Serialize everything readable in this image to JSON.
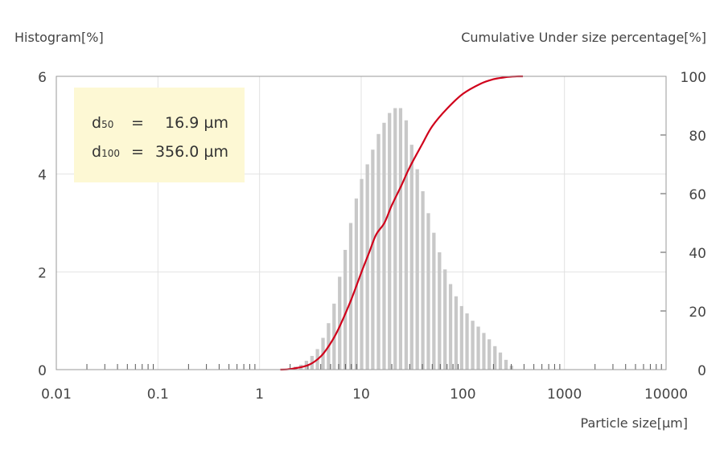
{
  "chart_data": {
    "type": "bar",
    "title": "",
    "y_left_label": "Histogram[%]",
    "y_right_label": "Cumulative Under size percentage[%]",
    "xlabel": "Particle size[µm]",
    "x_scale": "log",
    "xlim": [
      0.01,
      10000
    ],
    "x_ticks": [
      "0.01",
      "0.1",
      "1",
      "10",
      "100",
      "1000",
      "10000"
    ],
    "ylim_left": [
      0,
      6
    ],
    "y_left_ticks": [
      "0",
      "2",
      "4",
      "6"
    ],
    "ylim_right": [
      0,
      100
    ],
    "y_right_ticks": [
      "0",
      "20",
      "40",
      "60",
      "80",
      "100"
    ],
    "grid": true,
    "colors": {
      "histogram": "#c8c8c8",
      "cumulative": "#d0021b",
      "statbox": "#fdf8d4"
    },
    "histogram": {
      "x": [
        1.75,
        1.98,
        2.25,
        2.55,
        2.89,
        3.28,
        3.71,
        4.21,
        4.77,
        5.41,
        6.14,
        6.96,
        7.89,
        8.95,
        10.1,
        11.5,
        13.0,
        14.8,
        16.8,
        19.0,
        21.6,
        24.4,
        27.7,
        31.4,
        35.6,
        40.4,
        45.8,
        51.9,
        58.9,
        66.8,
        75.7,
        85.8,
        97.3,
        110.0,
        125.0,
        142.0,
        161.0,
        182.0,
        207.0,
        234.0,
        266.0,
        301.0
      ],
      "values": [
        0.02,
        0.03,
        0.06,
        0.1,
        0.18,
        0.28,
        0.42,
        0.65,
        0.95,
        1.35,
        1.9,
        2.45,
        3.0,
        3.5,
        3.9,
        4.2,
        4.5,
        4.82,
        5.05,
        5.25,
        5.35,
        5.35,
        5.1,
        4.6,
        4.1,
        3.65,
        3.2,
        2.8,
        2.4,
        2.05,
        1.75,
        1.5,
        1.3,
        1.15,
        1.0,
        0.88,
        0.75,
        0.62,
        0.48,
        0.35,
        0.2,
        0.08
      ]
    },
    "cumulative": {
      "name": "Cumulative Under size percentage",
      "x": [
        1.6,
        2,
        3,
        4,
        5,
        6,
        8,
        10,
        12,
        14,
        16.9,
        20,
        25,
        30,
        40,
        50,
        70,
        100,
        150,
        200,
        250,
        300,
        356
      ],
      "values": [
        0,
        0.2,
        1.5,
        4.5,
        9,
        14,
        24,
        33,
        40,
        46,
        50,
        56,
        63,
        69,
        77,
        83,
        89,
        94,
        97.5,
        99,
        99.6,
        99.9,
        100
      ]
    }
  },
  "stats": {
    "d50_label": "d",
    "d50_sub": "50",
    "d50_eq": "=",
    "d50_value": "16.9 µm",
    "d100_label": "d",
    "d100_sub": "100",
    "d100_eq": "=",
    "d100_value": "356.0 µm"
  }
}
